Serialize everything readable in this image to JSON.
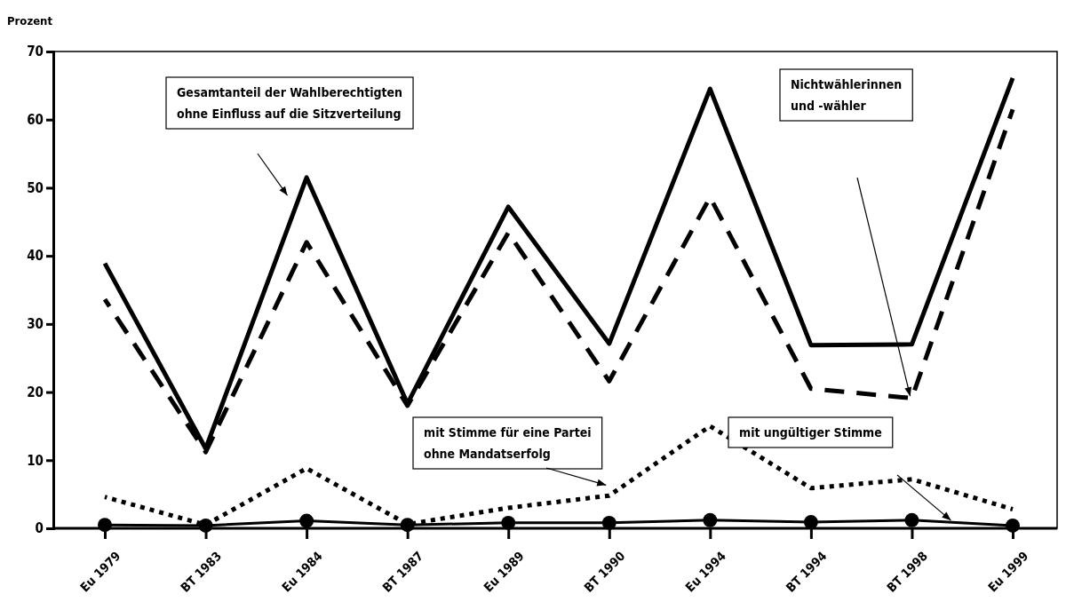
{
  "chart_data": {
    "type": "line",
    "ylabel": "Prozent",
    "categories": [
      "Eu 1979",
      "BT 1983",
      "Eu 1984",
      "BT 1987",
      "Eu 1989",
      "BT 1990",
      "Eu 1994",
      "BT 1994",
      "BT 1998",
      "Eu 1999"
    ],
    "ylim": [
      0,
      70
    ],
    "yticks": [
      0,
      10,
      20,
      30,
      40,
      50,
      60,
      70
    ],
    "grid": false,
    "series": [
      {
        "color": "#000000",
        "line_style": "solid",
        "marker": "none",
        "values": [
          38.9,
          11.7,
          51.5,
          18.3,
          47.2,
          27.1,
          64.5,
          26.9,
          27.0,
          66.1
        ]
      },
      {
        "color": "#000000",
        "line_style": "dashed",
        "marker": "none",
        "values": [
          33.6,
          11.2,
          42.0,
          18.0,
          43.4,
          21.6,
          48.6,
          20.5,
          19.1,
          61.5
        ]
      },
      {
        "color": "#000000",
        "line_style": "dotted",
        "marker": "none",
        "values": [
          4.6,
          0.5,
          8.8,
          0.6,
          3.0,
          4.8,
          15.0,
          5.9,
          7.2,
          2.8
        ]
      },
      {
        "color": "#000000",
        "line_style": "solid",
        "marker": "circle",
        "values": [
          0.5,
          0.4,
          1.1,
          0.5,
          0.8,
          0.8,
          1.2,
          0.9,
          1.2,
          0.4
        ]
      }
    ],
    "annotations": [
      "Gesamtanteil der Wahlberechtigten\nohne Einfluss auf die Sitzverteilung",
      "Nichtwählerinnen\nund -wähler",
      "mit Stimme für eine Partei\nohne Mandatserfolg",
      "mit ungültiger Stimme"
    ]
  }
}
